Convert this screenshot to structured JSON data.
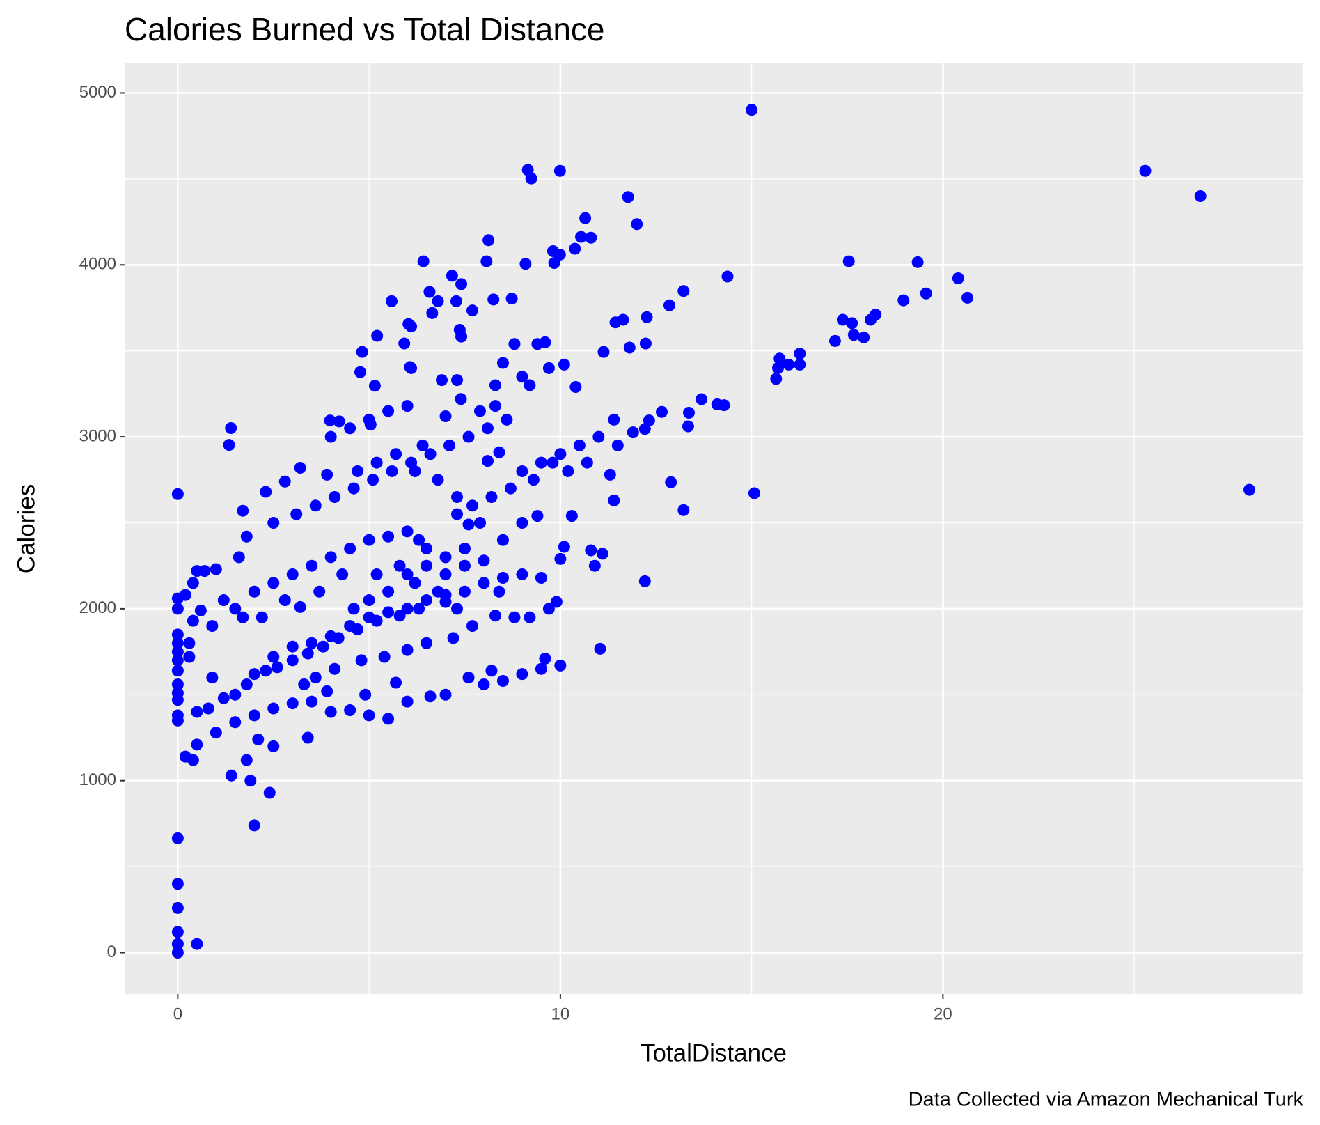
{
  "chart_data": {
    "type": "scatter",
    "title": "Calories Burned vs Total Distance",
    "x_label": "TotalDistance",
    "y_label": "Calories",
    "caption": "Data Collected via Amazon Mechanical Turk",
    "color": "#0000ff",
    "xlim": [
      -1.39,
      29.42
    ],
    "ylim": [
      -241,
      5172
    ],
    "xticks": [
      0,
      10,
      20
    ],
    "yticks": [
      0,
      1000,
      2000,
      3000,
      4000,
      5000
    ],
    "x_minor_grid": [
      5,
      15,
      25
    ],
    "y_minor_grid": [
      500,
      1500,
      2500,
      3500,
      4500
    ],
    "grid": true,
    "x": [
      15.0,
      25.29,
      26.73,
      28.01,
      15.07,
      0,
      9.15,
      9.24,
      9.99,
      11.77,
      12.0,
      10.65,
      10.54,
      10.8,
      10.38,
      8.12,
      8.07,
      6.42,
      7.17,
      14.37,
      17.54,
      19.34,
      20.4,
      20.64,
      19.56,
      18.97,
      18.24,
      18.11,
      17.38,
      17.62,
      17.67,
      17.93,
      17.18,
      16.26,
      15.73,
      15.69,
      15.97,
      16.26,
      15.64,
      14.28,
      14.1,
      13.69,
      13.36,
      13.34,
      12.65,
      12.32,
      12.21,
      11.9,
      13.22,
      12.85,
      12.26,
      12.23,
      11.81,
      11.64,
      11.44,
      11.13,
      12.89,
      13.22,
      12.21,
      11.04,
      9.99,
      9.81,
      9.09,
      9.84,
      6.58,
      6.8,
      6.65,
      7.28,
      7.41,
      7.37,
      7.41,
      7.7,
      8.25,
      8.73,
      5.59,
      6.1,
      6.03,
      5.92,
      5.21,
      4.82,
      4.77,
      5.15,
      6.07,
      1.39,
      1.34,
      3.98,
      4.22,
      5.04,
      0,
      0,
      0,
      0.5,
      0,
      0,
      0,
      2,
      2.4,
      1.9,
      1.4,
      0.2,
      0.4,
      0.5,
      1.8,
      2.5,
      2.1,
      3.4,
      0,
      0,
      0,
      0,
      0,
      0,
      0,
      0,
      0,
      0.3,
      0,
      0,
      0,
      0.2,
      0.4,
      0.7,
      0.5,
      1,
      0.4,
      0.6,
      0.9,
      0.3,
      0.9,
      0.5,
      0.8,
      1.2,
      1.5,
      1.8,
      2,
      2.3,
      2.6,
      3,
      3.4,
      3.8,
      4.2,
      4.7,
      5.2,
      5.8,
      6.3,
      7,
      1,
      1.5,
      2,
      2.5,
      3,
      3.5,
      4,
      4.5,
      5,
      5.5,
      6,
      6.6,
      7,
      7.6,
      8,
      8.5,
      9,
      9.5,
      10,
      9.6,
      8.2,
      5.7,
      4.9,
      3.9,
      3.3,
      2.5,
      3,
      3.5,
      4,
      4.5,
      5,
      5.5,
      6,
      6.5,
      7,
      7.5,
      8,
      8.5,
      9,
      9.5,
      8.3,
      8.8,
      9.2,
      9.7,
      9.9,
      7.7,
      7.2,
      6.5,
      6,
      5.4,
      4.8,
      4.1,
      3.6,
      4.6,
      3.2,
      1.5,
      2,
      2.5,
      3,
      3.5,
      4,
      4.5,
      5,
      5.5,
      6,
      6.5,
      7,
      7.5,
      5.2,
      5.8,
      6.2,
      4.3,
      3.7,
      2.8,
      2.2,
      1.7,
      1.2,
      1.6,
      2.5,
      3.1,
      3.6,
      4.1,
      4.6,
      5.1,
      5.6,
      6.1,
      6.6,
      7.1,
      7.6,
      8.1,
      8.6,
      1.8,
      1.7,
      2.3,
      2.8,
      3.2,
      3.9,
      4,
      4.5,
      5,
      5.5,
      6,
      6.4,
      7,
      7.4,
      7.9,
      8.3,
      8.5,
      9.2,
      9.4,
      9.6,
      9.7,
      10.1,
      10.4,
      9,
      8.8,
      8.3,
      7.3,
      6.9,
      6.1,
      9,
      9.5,
      10,
      10.5,
      11,
      11.4,
      11.5,
      11.3,
      10.7,
      10.2,
      9.8,
      9.3,
      8.7,
      8.2,
      7.7,
      7.3,
      10.3,
      10.1,
      10.8,
      11.1,
      10.9,
      10,
      11.4,
      9,
      9.4,
      8.5,
      7.6,
      6.5,
      7,
      7.5,
      8,
      8.4,
      6.8,
      7.3,
      5.5,
      6,
      5,
      6.3,
      7.9,
      7.3,
      6.8,
      6.2,
      5.7,
      5.2,
      4.7,
      8.1,
      8.4
    ],
    "values": [
      4902,
      4547,
      4400,
      2692,
      2672,
      2667,
      4552,
      4503,
      4547,
      4395,
      4237,
      4272,
      4163,
      4158,
      4094,
      4144,
      4021,
      4021,
      3937,
      3932,
      4021,
      4016,
      3922,
      3809,
      3834,
      3794,
      3711,
      3681,
      3681,
      3661,
      3593,
      3578,
      3558,
      3484,
      3455,
      3401,
      3420,
      3420,
      3337,
      3184,
      3189,
      3219,
      3140,
      3061,
      3145,
      3095,
      3046,
      3026,
      3848,
      3765,
      3696,
      3543,
      3519,
      3681,
      3666,
      3494,
      2736,
      2574,
      2160,
      1767,
      4060,
      4080,
      4006,
      4011,
      3843,
      3789,
      3720,
      3789,
      3888,
      3622,
      3583,
      3735,
      3799,
      3804,
      3789,
      3642,
      3656,
      3543,
      3588,
      3494,
      3376,
      3297,
      3406,
      3051,
      2953,
      3095,
      3090,
      3071,
      0,
      50,
      120,
      50,
      260,
      400,
      665,
      740,
      930,
      1000,
      1030,
      1140,
      1120,
      1210,
      1120,
      1200,
      1240,
      1250,
      1350,
      1380,
      1470,
      1510,
      1560,
      1640,
      1700,
      1750,
      1800,
      1800,
      1850,
      2000,
      2060,
      2080,
      2150,
      2220,
      2220,
      2230,
      1930,
      1990,
      1900,
      1720,
      1600,
      1400,
      1420,
      1480,
      1500,
      1560,
      1620,
      1640,
      1660,
      1700,
      1740,
      1780,
      1830,
      1880,
      1930,
      1960,
      2000,
      2040,
      1280,
      1340,
      1380,
      1420,
      1450,
      1460,
      1400,
      1410,
      1380,
      1360,
      1460,
      1490,
      1500,
      1600,
      1560,
      1580,
      1620,
      1650,
      1670,
      1710,
      1640,
      1570,
      1500,
      1520,
      1560,
      1720,
      1780,
      1800,
      1840,
      1900,
      1950,
      1980,
      2000,
      2050,
      2080,
      2100,
      2150,
      2180,
      2200,
      2180,
      1960,
      1950,
      1950,
      2000,
      2040,
      1900,
      1830,
      1800,
      1760,
      1720,
      1700,
      1650,
      1600,
      2000,
      2010,
      2000,
      2100,
      2150,
      2200,
      2250,
      2300,
      2350,
      2400,
      2420,
      2450,
      2350,
      2300,
      2250,
      2200,
      2250,
      2150,
      2200,
      2100,
      2050,
      1950,
      1950,
      2050,
      2300,
      2500,
      2550,
      2600,
      2650,
      2700,
      2750,
      2800,
      2850,
      2900,
      2950,
      3000,
      3050,
      3100,
      2420,
      2570,
      2680,
      2740,
      2820,
      2780,
      3000,
      3050,
      3100,
      3150,
      3180,
      2950,
      3120,
      3220,
      3150,
      3180,
      3430,
      3300,
      3540,
      3550,
      3400,
      3420,
      3290,
      3350,
      3540,
      3300,
      3330,
      3330,
      3400,
      2800,
      2850,
      2900,
      2950,
      3000,
      3100,
      2950,
      2780,
      2850,
      2800,
      2850,
      2750,
      2700,
      2650,
      2600,
      2550,
      2540,
      2360,
      2340,
      2320,
      2250,
      2290,
      2630,
      2500,
      2540,
      2400,
      2490,
      2250,
      2200,
      2350,
      2280,
      2100,
      2100,
      2000,
      2100,
      2200,
      2050,
      2400,
      2500,
      2650,
      2750,
      2800,
      2900,
      2850,
      2800,
      2860,
      2910
    ]
  }
}
